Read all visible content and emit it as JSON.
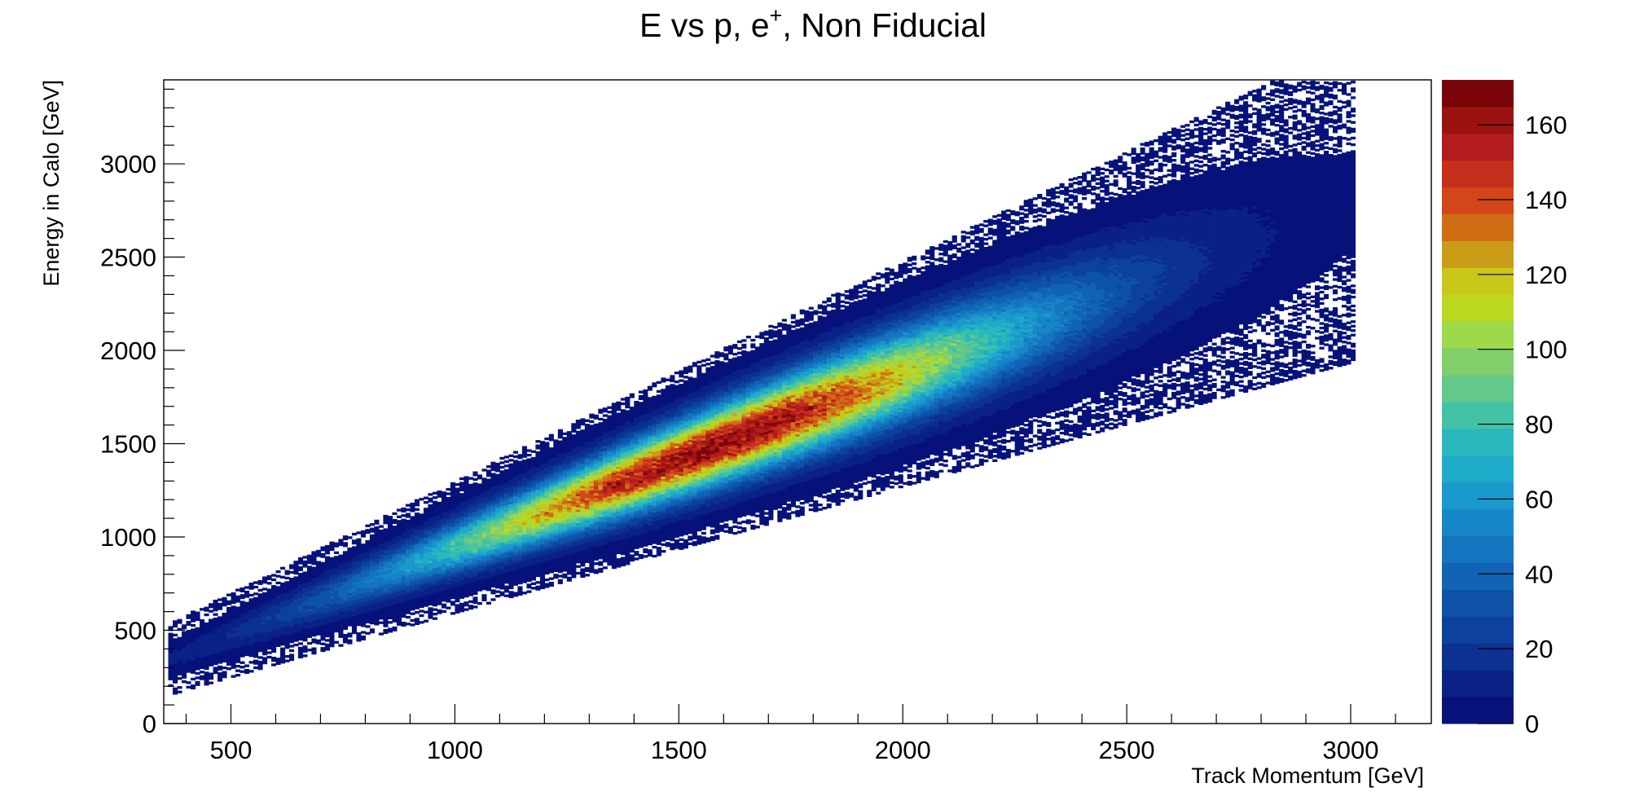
{
  "chart_data": {
    "type": "heatmap",
    "title": {
      "main": "E vs p, e",
      "superscript": "+",
      "rest": ", Non Fiducial"
    },
    "xlabel": "Track Momentum [GeV]",
    "ylabel": "Energy in Calo [GeV]",
    "xlim": [
      350,
      3180
    ],
    "ylim": [
      0,
      3450
    ],
    "zlim": [
      0,
      172
    ],
    "x_ticks": [
      "500",
      "1000",
      "1500",
      "2000",
      "2500",
      "3000"
    ],
    "y_ticks": [
      "0",
      "500",
      "1000",
      "1500",
      "2000",
      "2500",
      "3000"
    ],
    "z_ticks": [
      "0",
      "20",
      "40",
      "60",
      "80",
      "100",
      "120",
      "140",
      "160"
    ],
    "x_tick_values": [
      500,
      1000,
      1500,
      2000,
      2500,
      3000
    ],
    "y_tick_values": [
      0,
      500,
      1000,
      1500,
      2000,
      2500,
      3000
    ],
    "z_tick_values": [
      0,
      20,
      40,
      60,
      80,
      100,
      120,
      140,
      160
    ],
    "band": {
      "x_range": [
        360,
        3000
      ],
      "ratio_at_low_p": 0.95,
      "ratio_at_high_p": 0.93,
      "peak_p": 1580,
      "peak_e": 1520,
      "peak_count": 165
    },
    "palette": [
      "#06127a",
      "#0a2186",
      "#0b3191",
      "#0c419d",
      "#0e52a8",
      "#1163b4",
      "#1474bf",
      "#1786c8",
      "#1b98cc",
      "#1eaac9",
      "#2bb8bc",
      "#44c2a5",
      "#62c98a",
      "#80cf6b",
      "#9ed94b",
      "#bcd71f",
      "#c8c71a",
      "#cb9c18",
      "#d06e15",
      "#d3461a",
      "#c72f1d",
      "#b21c1e",
      "#9b1311",
      "#7a0508"
    ],
    "grid": false,
    "legend": "colorbar-right"
  }
}
